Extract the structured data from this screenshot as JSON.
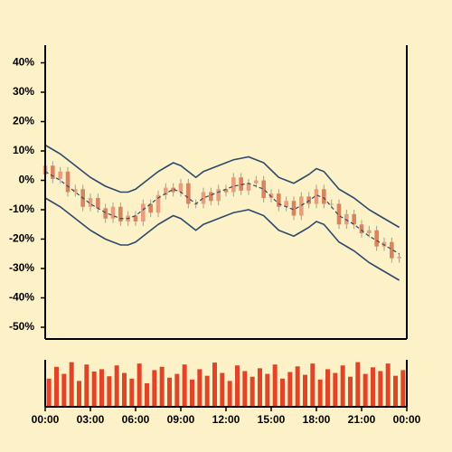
{
  "chart_data": [
    {
      "type": "candlestick",
      "x": [
        0,
        0.5,
        1,
        1.5,
        2,
        2.5,
        3,
        3.5,
        4,
        4.5,
        5,
        5.5,
        6,
        6.5,
        7,
        7.5,
        8,
        8.5,
        9,
        9.5,
        10,
        10.5,
        11,
        11.5,
        12,
        12.5,
        13,
        13.5,
        14,
        14.5,
        15,
        15.5,
        16,
        16.5,
        17,
        17.5,
        18,
        18.5,
        19,
        19.5,
        20,
        20.5,
        21,
        21.5,
        22,
        22.5,
        23,
        23.5
      ],
      "open": [
        2,
        5,
        0.5,
        3,
        -4,
        -3,
        -9,
        -6,
        -9.5,
        -13,
        -9,
        -14,
        -12,
        -14,
        -8,
        -11,
        -5,
        -2.5,
        -4,
        -1,
        -8,
        -8,
        -4,
        -7,
        -3,
        -4,
        1,
        -3.5,
        -1,
        0,
        -6,
        -4.5,
        -9,
        -7,
        -12,
        -5.5,
        -8,
        -3,
        -8,
        -8,
        -15,
        -11.5,
        -15,
        -18,
        -17,
        -22.5,
        -21,
        -26.5
      ],
      "high": [
        6.5,
        6.5,
        4.5,
        4.5,
        -1.5,
        -1.5,
        -4.5,
        -4.5,
        -8,
        -7.5,
        -7.5,
        -10.5,
        -10.5,
        -6.5,
        -6.5,
        -3.5,
        -1,
        -1,
        0.5,
        0.5,
        -6.5,
        -2.5,
        -2.5,
        -1.5,
        -1.5,
        2.5,
        2.5,
        0.5,
        1.5,
        1.5,
        -3,
        -3,
        -5.5,
        -5.5,
        -4,
        -4,
        -1.5,
        -1.5,
        -6.5,
        -6.5,
        -10,
        -10,
        -13.5,
        -15.5,
        -15.5,
        -19.5,
        -19.5,
        -25
      ],
      "low": [
        0.5,
        -1,
        -1,
        -5.5,
        -5.5,
        -10.5,
        -10.5,
        -11,
        -14.5,
        -14.5,
        -15.5,
        -15.5,
        -15.5,
        -15.5,
        -12.5,
        -12.5,
        -6.5,
        -5.5,
        -5.5,
        -9.5,
        -9.5,
        -9.5,
        -8.5,
        -8.5,
        -5.5,
        -5.5,
        -5,
        -5,
        -2.5,
        -7.5,
        -7.5,
        -10.5,
        -10.5,
        -13.5,
        -13.5,
        -9.5,
        -9.5,
        -9.5,
        -9.5,
        -16.5,
        -16.5,
        -16.5,
        -19.5,
        -19.5,
        -24,
        -24,
        -28,
        -28
      ],
      "close": [
        5,
        0.5,
        3,
        -4,
        -3,
        -9,
        -6,
        -9.5,
        -13,
        -9,
        -14,
        -12,
        -14,
        -8,
        -11,
        -5,
        -2.5,
        -4,
        -1,
        -8,
        -8,
        -4,
        -7,
        -3,
        -4,
        1,
        -3.5,
        -1,
        0,
        -6,
        -4.5,
        -9,
        -7,
        -12,
        -5.5,
        -8,
        -3,
        -8,
        -8,
        -15,
        -11.5,
        -15,
        -18,
        -17,
        -22.5,
        -21,
        -26.5,
        -26
      ],
      "up_color": "#ea9c7c",
      "down_color": "#d9835f",
      "upper": [
        12,
        10.5,
        9,
        7,
        5,
        3,
        1,
        -0.5,
        -2,
        -3,
        -4,
        -4,
        -3,
        -1,
        1,
        3,
        4.5,
        6,
        5,
        3,
        1,
        3,
        4,
        5,
        6,
        7,
        7.5,
        8,
        7,
        6,
        3.5,
        1,
        0,
        -1,
        0.5,
        2,
        4,
        3,
        0,
        -3,
        -4.5,
        -6,
        -8,
        -10,
        -11.5,
        -13,
        -14.5,
        -16
      ],
      "middle": [
        3,
        1.5,
        0,
        -2,
        -4,
        -6,
        -8,
        -9.5,
        -11,
        -12,
        -13,
        -13,
        -12,
        -10,
        -8,
        -6,
        -4.5,
        -3,
        -4,
        -6,
        -8,
        -6,
        -5,
        -4,
        -3,
        -2,
        -1.5,
        -1,
        -2,
        -3,
        -5.5,
        -8,
        -9,
        -10,
        -8.5,
        -7,
        -5,
        -6,
        -9,
        -12,
        -13.5,
        -15,
        -17,
        -19,
        -20.5,
        -22,
        -23.5,
        -25
      ],
      "lower": [
        -6,
        -7.5,
        -9,
        -11,
        -13,
        -15,
        -17,
        -18.5,
        -20,
        -21,
        -22,
        -22,
        -21,
        -19,
        -17,
        -15,
        -13.5,
        -12,
        -13,
        -15,
        -17,
        -15,
        -14,
        -13,
        -12,
        -11,
        -10.5,
        -10,
        -11,
        -12,
        -14.5,
        -17,
        -18,
        -19,
        -17.5,
        -16,
        -14,
        -15,
        -18,
        -21,
        -22.5,
        -24,
        -26,
        -28,
        -29.5,
        -31,
        -32.5,
        -34
      ],
      "band_color": "#2c4a6e",
      "xlim": [
        0,
        24
      ],
      "ylim": [
        -54,
        46
      ],
      "yticks": [
        {
          "value": 40,
          "label": "40%"
        },
        {
          "value": 30,
          "label": "30%"
        },
        {
          "value": 20,
          "label": "20%"
        },
        {
          "value": 10,
          "label": "10%"
        },
        {
          "value": 0,
          "label": "0%"
        },
        {
          "value": -10,
          "label": "-10%"
        },
        {
          "value": -20,
          "label": "-20%"
        },
        {
          "value": -30,
          "label": "-30%"
        },
        {
          "value": -40,
          "label": "-40%"
        },
        {
          "value": -50,
          "label": "-50%"
        }
      ]
    },
    {
      "type": "bar",
      "x": [
        0,
        0.5,
        1,
        1.5,
        2,
        2.5,
        3,
        3.5,
        4,
        4.5,
        5,
        5.5,
        6,
        6.5,
        7,
        7.5,
        8,
        8.5,
        9,
        9.5,
        10,
        10.5,
        11,
        11.5,
        12,
        12.5,
        13,
        13.5,
        14,
        14.5,
        15,
        15.5,
        16,
        16.5,
        17,
        17.5,
        18,
        18.5,
        19,
        19.5,
        20,
        20.5,
        21,
        21.5,
        22,
        22.5,
        23,
        23.5
      ],
      "values": [
        60,
        85,
        70,
        95,
        55,
        90,
        75,
        80,
        65,
        88,
        72,
        60,
        92,
        50,
        78,
        85,
        62,
        70,
        90,
        58,
        80,
        66,
        94,
        72,
        55,
        88,
        76,
        64,
        82,
        70,
        90,
        60,
        74,
        86,
        68,
        92,
        58,
        80,
        72,
        88,
        64,
        95,
        70,
        84,
        76,
        92,
        66,
        78
      ],
      "color": "#e0452a",
      "xlim": [
        0,
        24
      ],
      "ylim": [
        0,
        100
      ],
      "xticks": [
        {
          "value": 0,
          "label": "00:00"
        },
        {
          "value": 3,
          "label": "03:00"
        },
        {
          "value": 6,
          "label": "06:00"
        },
        {
          "value": 9,
          "label": "09:00"
        },
        {
          "value": 12,
          "label": "12:00"
        },
        {
          "value": 15,
          "label": "15:00"
        },
        {
          "value": 18,
          "label": "18:00"
        },
        {
          "value": 21,
          "label": "21:00"
        },
        {
          "value": 24,
          "label": "00:00"
        }
      ]
    }
  ]
}
